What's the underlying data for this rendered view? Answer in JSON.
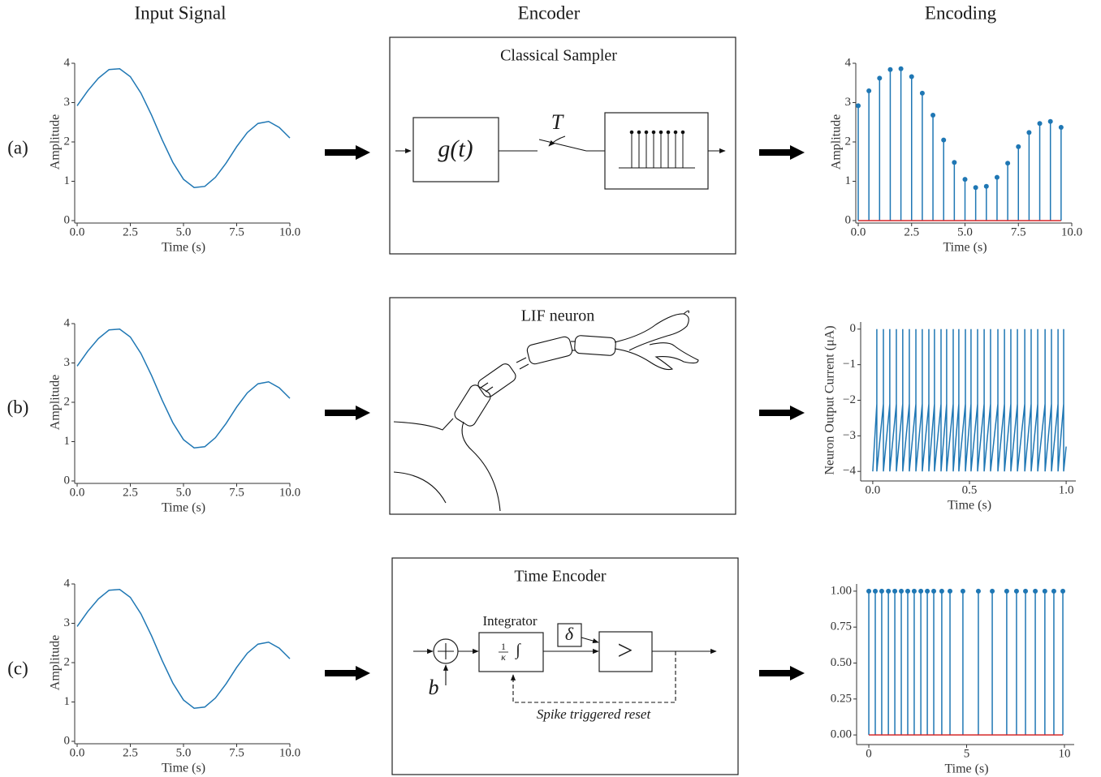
{
  "headers": [
    "Input Signal",
    "Encoder",
    "Encoding"
  ],
  "row_labels": [
    "(a)",
    "(b)",
    "(c)"
  ],
  "encoders": [
    {
      "title": "Classical Sampler",
      "block": "g(t)",
      "switch": "T"
    },
    {
      "title": "LIF neuron"
    },
    {
      "title": "Time Encoder",
      "integrator": "Integrator",
      "gain_numerator": "1",
      "gain_denominator": "κ",
      "integral": "∫",
      "threshold": "δ",
      "comparator": ">",
      "bias": "b",
      "feedback": "Spike triggered reset"
    }
  ],
  "chart_data": [
    {
      "type": "line",
      "xlabel": "Time (s)",
      "ylabel": "Amplitude",
      "color": "#1f77b4",
      "x": [
        0,
        0.5,
        1,
        1.5,
        2,
        2.5,
        3,
        3.5,
        4,
        4.5,
        5,
        5.5,
        6,
        6.5,
        7,
        7.5,
        8,
        8.5,
        9,
        9.5,
        10
      ],
      "values": [
        2.92,
        3.3,
        3.62,
        3.84,
        3.86,
        3.66,
        3.24,
        2.68,
        2.05,
        1.48,
        1.05,
        0.84,
        0.87,
        1.1,
        1.46,
        1.88,
        2.24,
        2.47,
        2.52,
        2.37,
        2.1
      ],
      "xlim": [
        0,
        10
      ],
      "ylim": [
        0,
        4
      ],
      "xticks": [
        {
          "value": 0,
          "label": "0.0"
        },
        {
          "value": 2.5,
          "label": "2.5"
        },
        {
          "value": 5,
          "label": "5.0"
        },
        {
          "value": 7.5,
          "label": "7.5"
        },
        {
          "value": 10,
          "label": "10.0"
        }
      ],
      "yticks": [
        0,
        1,
        2,
        3,
        4
      ],
      "grid": false
    },
    {
      "type": "line",
      "xlabel": "Time (s)",
      "ylabel": "Amplitude",
      "color": "#1f77b4",
      "x": [
        0,
        0.5,
        1,
        1.5,
        2,
        2.5,
        3,
        3.5,
        4,
        4.5,
        5,
        5.5,
        6,
        6.5,
        7,
        7.5,
        8,
        8.5,
        9,
        9.5,
        10
      ],
      "values": [
        2.92,
        3.3,
        3.62,
        3.84,
        3.86,
        3.66,
        3.24,
        2.68,
        2.05,
        1.48,
        1.05,
        0.84,
        0.87,
        1.1,
        1.46,
        1.88,
        2.24,
        2.47,
        2.52,
        2.37,
        2.1
      ],
      "xlim": [
        0,
        10
      ],
      "ylim": [
        0,
        4
      ],
      "xticks": [
        {
          "value": 0,
          "label": "0.0"
        },
        {
          "value": 2.5,
          "label": "2.5"
        },
        {
          "value": 5,
          "label": "5.0"
        },
        {
          "value": 7.5,
          "label": "7.5"
        },
        {
          "value": 10,
          "label": "10.0"
        }
      ],
      "yticks": [
        0,
        1,
        2,
        3,
        4
      ],
      "grid": false
    },
    {
      "type": "line",
      "xlabel": "Time (s)",
      "ylabel": "Amplitude",
      "color": "#1f77b4",
      "x": [
        0,
        0.5,
        1,
        1.5,
        2,
        2.5,
        3,
        3.5,
        4,
        4.5,
        5,
        5.5,
        6,
        6.5,
        7,
        7.5,
        8,
        8.5,
        9,
        9.5,
        10
      ],
      "values": [
        2.92,
        3.3,
        3.62,
        3.84,
        3.86,
        3.66,
        3.24,
        2.68,
        2.05,
        1.48,
        1.05,
        0.84,
        0.87,
        1.1,
        1.46,
        1.88,
        2.24,
        2.47,
        2.52,
        2.37,
        2.1
      ],
      "xlim": [
        0,
        10
      ],
      "ylim": [
        0,
        4
      ],
      "xticks": [
        {
          "value": 0,
          "label": "0.0"
        },
        {
          "value": 2.5,
          "label": "2.5"
        },
        {
          "value": 5,
          "label": "5.0"
        },
        {
          "value": 7.5,
          "label": "7.5"
        },
        {
          "value": 10,
          "label": "10.0"
        }
      ],
      "yticks": [
        0,
        1,
        2,
        3,
        4
      ],
      "grid": false
    },
    {
      "type": "stem",
      "xlabel": "Time (s)",
      "ylabel": "Amplitude",
      "color": "#1f77b4",
      "baseline_color": "#d62728",
      "x": [
        0,
        0.5,
        1,
        1.5,
        2,
        2.5,
        3,
        3.5,
        4,
        4.5,
        5,
        5.5,
        6,
        6.5,
        7,
        7.5,
        8,
        8.5,
        9,
        9.5
      ],
      "values": [
        2.92,
        3.3,
        3.62,
        3.84,
        3.86,
        3.66,
        3.24,
        2.68,
        2.05,
        1.48,
        1.05,
        0.84,
        0.87,
        1.1,
        1.46,
        1.88,
        2.24,
        2.47,
        2.52,
        2.37
      ],
      "xlim": [
        0,
        10
      ],
      "ylim": [
        0,
        4
      ],
      "xticks": [
        {
          "value": 0,
          "label": "0.0"
        },
        {
          "value": 2.5,
          "label": "2.5"
        },
        {
          "value": 5,
          "label": "5.0"
        },
        {
          "value": 7.5,
          "label": "7.5"
        },
        {
          "value": 10,
          "label": "10.0"
        }
      ],
      "yticks": [
        0,
        1,
        2,
        3,
        4
      ],
      "grid": false
    },
    {
      "type": "line",
      "xlabel": "Time (s)",
      "ylabel": "Neuron Output Current (μA)",
      "color": "#1f77b4",
      "x": [
        0,
        0.021,
        0.021,
        0.021,
        0.055,
        0.055,
        0.055,
        0.088,
        0.088,
        0.088,
        0.122,
        0.122,
        0.122,
        0.155,
        0.155,
        0.155,
        0.189,
        0.189,
        0.189,
        0.223,
        0.223,
        0.223,
        0.256,
        0.256,
        0.256,
        0.29,
        0.29,
        0.29,
        0.319,
        0.319,
        0.319,
        0.353,
        0.353,
        0.353,
        0.382,
        0.382,
        0.382,
        0.416,
        0.416,
        0.416,
        0.445,
        0.445,
        0.445,
        0.479,
        0.479,
        0.479,
        0.508,
        0.508,
        0.508,
        0.542,
        0.542,
        0.542,
        0.576,
        0.576,
        0.576,
        0.609,
        0.609,
        0.609,
        0.647,
        0.647,
        0.647,
        0.681,
        0.681,
        0.681,
        0.714,
        0.714,
        0.714,
        0.748,
        0.748,
        0.748,
        0.786,
        0.786,
        0.786,
        0.819,
        0.819,
        0.819,
        0.853,
        0.853,
        0.853,
        0.891,
        0.891,
        0.891,
        0.924,
        0.924,
        0.924,
        0.958,
        0.958,
        0.958,
        0.987,
        0.987,
        0.987,
        1.0
      ],
      "values": [
        -4,
        -2.1,
        0,
        -4,
        -2.1,
        0,
        -4,
        -2.1,
        0,
        -4,
        -2.1,
        0,
        -4,
        -2.1,
        0,
        -4,
        -2.1,
        0,
        -4,
        -2.1,
        0,
        -4,
        -2.1,
        0,
        -4,
        -2.1,
        0,
        -4,
        -2.1,
        0,
        -4,
        -2.1,
        0,
        -4,
        -2.1,
        0,
        -4,
        -2.1,
        0,
        -4,
        -2.1,
        0,
        -4,
        -2.1,
        0,
        -4,
        -2.1,
        0,
        -4,
        -2.1,
        0,
        -4,
        -2.1,
        0,
        -4,
        -2.1,
        0,
        -4,
        -2.1,
        0,
        -4,
        -2.1,
        0,
        -4,
        -2.1,
        0,
        -4,
        -2.1,
        0,
        -4,
        -2.1,
        0,
        -4,
        -2.1,
        0,
        -4,
        -2.1,
        0,
        -4,
        -2.1,
        0,
        -4,
        -2.1,
        0,
        -4,
        -2.1,
        0,
        -4,
        -2.1,
        0,
        -4,
        -3.3
      ],
      "xlim": [
        -0.05,
        1.05
      ],
      "ylim": [
        -4.2,
        0.2
      ],
      "xticks": [
        {
          "value": 0,
          "label": "0.0"
        },
        {
          "value": 0.5,
          "label": "0.5"
        },
        {
          "value": 1,
          "label": "1.0"
        }
      ],
      "yticks": [
        0,
        {
          "value": -1,
          "label": "−1"
        },
        {
          "value": -2,
          "label": "−2"
        },
        {
          "value": -3,
          "label": "−3"
        },
        {
          "value": -4,
          "label": "−4"
        }
      ],
      "grid": false
    },
    {
      "type": "stem",
      "xlabel": "Time (s)",
      "color": "#1f77b4",
      "baseline_color": "#d62728",
      "x": [
        0,
        0.33,
        0.66,
        1.0,
        1.33,
        1.66,
        1.99,
        2.32,
        2.66,
        2.99,
        3.32,
        3.73,
        4.15,
        4.81,
        5.6,
        6.31,
        7.05,
        7.55,
        8.01,
        8.51,
        9.0,
        9.46,
        9.92
      ],
      "values": [
        1,
        1,
        1,
        1,
        1,
        1,
        1,
        1,
        1,
        1,
        1,
        1,
        1,
        1,
        1,
        1,
        1,
        1,
        1,
        1,
        1,
        1,
        1
      ],
      "xlim": [
        -0.5,
        10.5
      ],
      "ylim": [
        -0.05,
        1.05
      ],
      "xticks": [
        0,
        5,
        10
      ],
      "yticks": [
        {
          "value": 0,
          "label": "0.00"
        },
        {
          "value": 0.25,
          "label": "0.25"
        },
        {
          "value": 0.5,
          "label": "0.50"
        },
        {
          "value": 0.75,
          "label": "0.75"
        },
        {
          "value": 1,
          "label": "1.00"
        }
      ],
      "grid": false
    }
  ]
}
